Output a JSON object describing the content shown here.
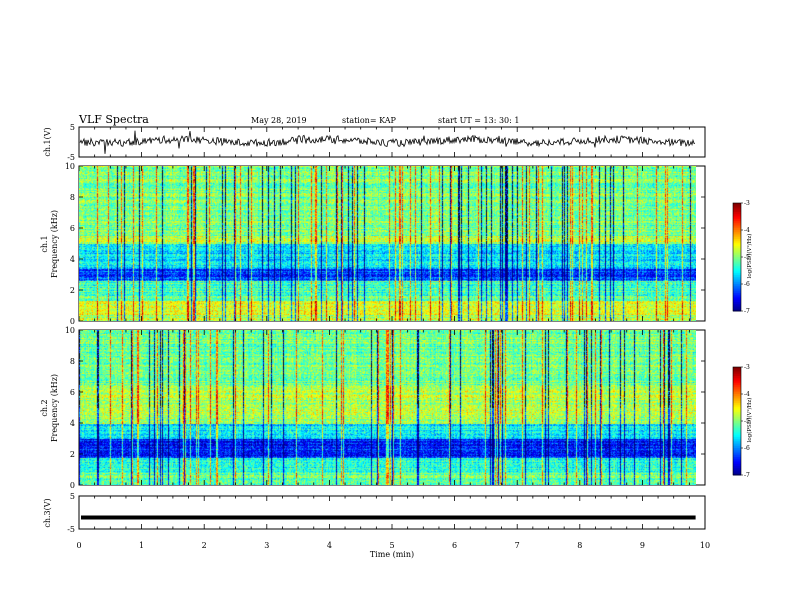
{
  "header": {
    "title": "VLF Spectra",
    "date": "May 28, 2019",
    "station": "station= KAP",
    "start": "start UT =  13: 30: 1"
  },
  "chart_data": {
    "type": "heatmap",
    "title": "VLF Spectra",
    "x_axis": {
      "label": "Time (min)",
      "range": [
        0,
        10
      ],
      "ticks": [
        "0",
        "1",
        "2",
        "3",
        "4",
        "5",
        "6",
        "7",
        "8",
        "9",
        "10"
      ]
    },
    "panels": [
      {
        "id": "ch1-waveform",
        "type": "line",
        "ylabel": "ch.1(V)",
        "yrange": [
          -5,
          5
        ],
        "ticks": [
          "5",
          "-5"
        ],
        "level": 0.3,
        "noise": 2.5
      },
      {
        "id": "ch1-spectrogram",
        "type": "heatmap",
        "ylabel_line1": "ch.1",
        "ylabel_line2": "Frequency (kHz)",
        "yrange": [
          0,
          10
        ],
        "ticks": [
          "0",
          "2",
          "4",
          "6",
          "8",
          "10"
        ],
        "colorbar": {
          "label": "log(PSD)(V²/Hz)",
          "range": [
            -7,
            -3
          ],
          "ticks": [
            "-3",
            "-4",
            "-5",
            "-6",
            "-7"
          ]
        }
      },
      {
        "id": "ch2-spectrogram",
        "type": "heatmap",
        "ylabel_line1": "ch.2",
        "ylabel_line2": "Frequency (kHz)",
        "yrange": [
          0,
          10
        ],
        "ticks": [
          "0",
          "2",
          "4",
          "6",
          "8",
          "10"
        ],
        "colorbar": {
          "label": "log(PSD)(V²/Hz)",
          "range": [
            -7,
            -3
          ],
          "ticks": [
            "-3",
            "-4",
            "-5",
            "-6",
            "-7"
          ]
        }
      },
      {
        "id": "ch3-waveform",
        "type": "line",
        "ylabel": "ch.3(V)",
        "yrange": [
          -5,
          5
        ],
        "ticks": [
          "5",
          "-5"
        ],
        "level": -1.5,
        "noise": 0.05
      }
    ],
    "data_end_min": 9.85
  }
}
